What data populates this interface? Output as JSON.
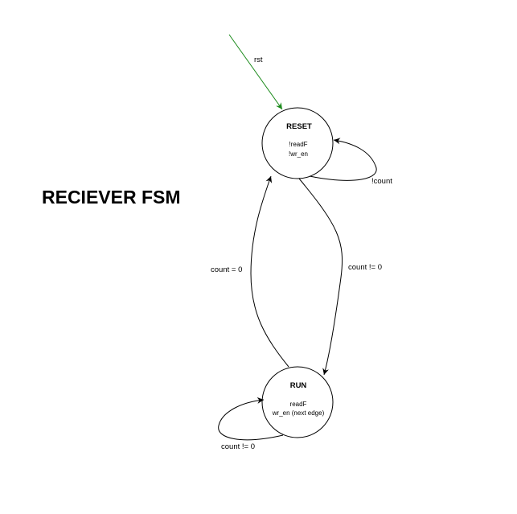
{
  "title": "RECIEVER FSM",
  "colors": {
    "reset_arrow": "#1a8a1a",
    "edge": "#000000"
  },
  "states": {
    "reset": {
      "name": "RESET",
      "outputs": [
        "!readF",
        "!wr_en"
      ]
    },
    "run": {
      "name": "RUN",
      "outputs": [
        "readF",
        "wr_en (next edge)"
      ]
    }
  },
  "transitions": {
    "rst": "rst",
    "reset_self": "!count",
    "reset_to_run": "count != 0",
    "run_to_reset": "count = 0",
    "run_self": "count != 0"
  }
}
